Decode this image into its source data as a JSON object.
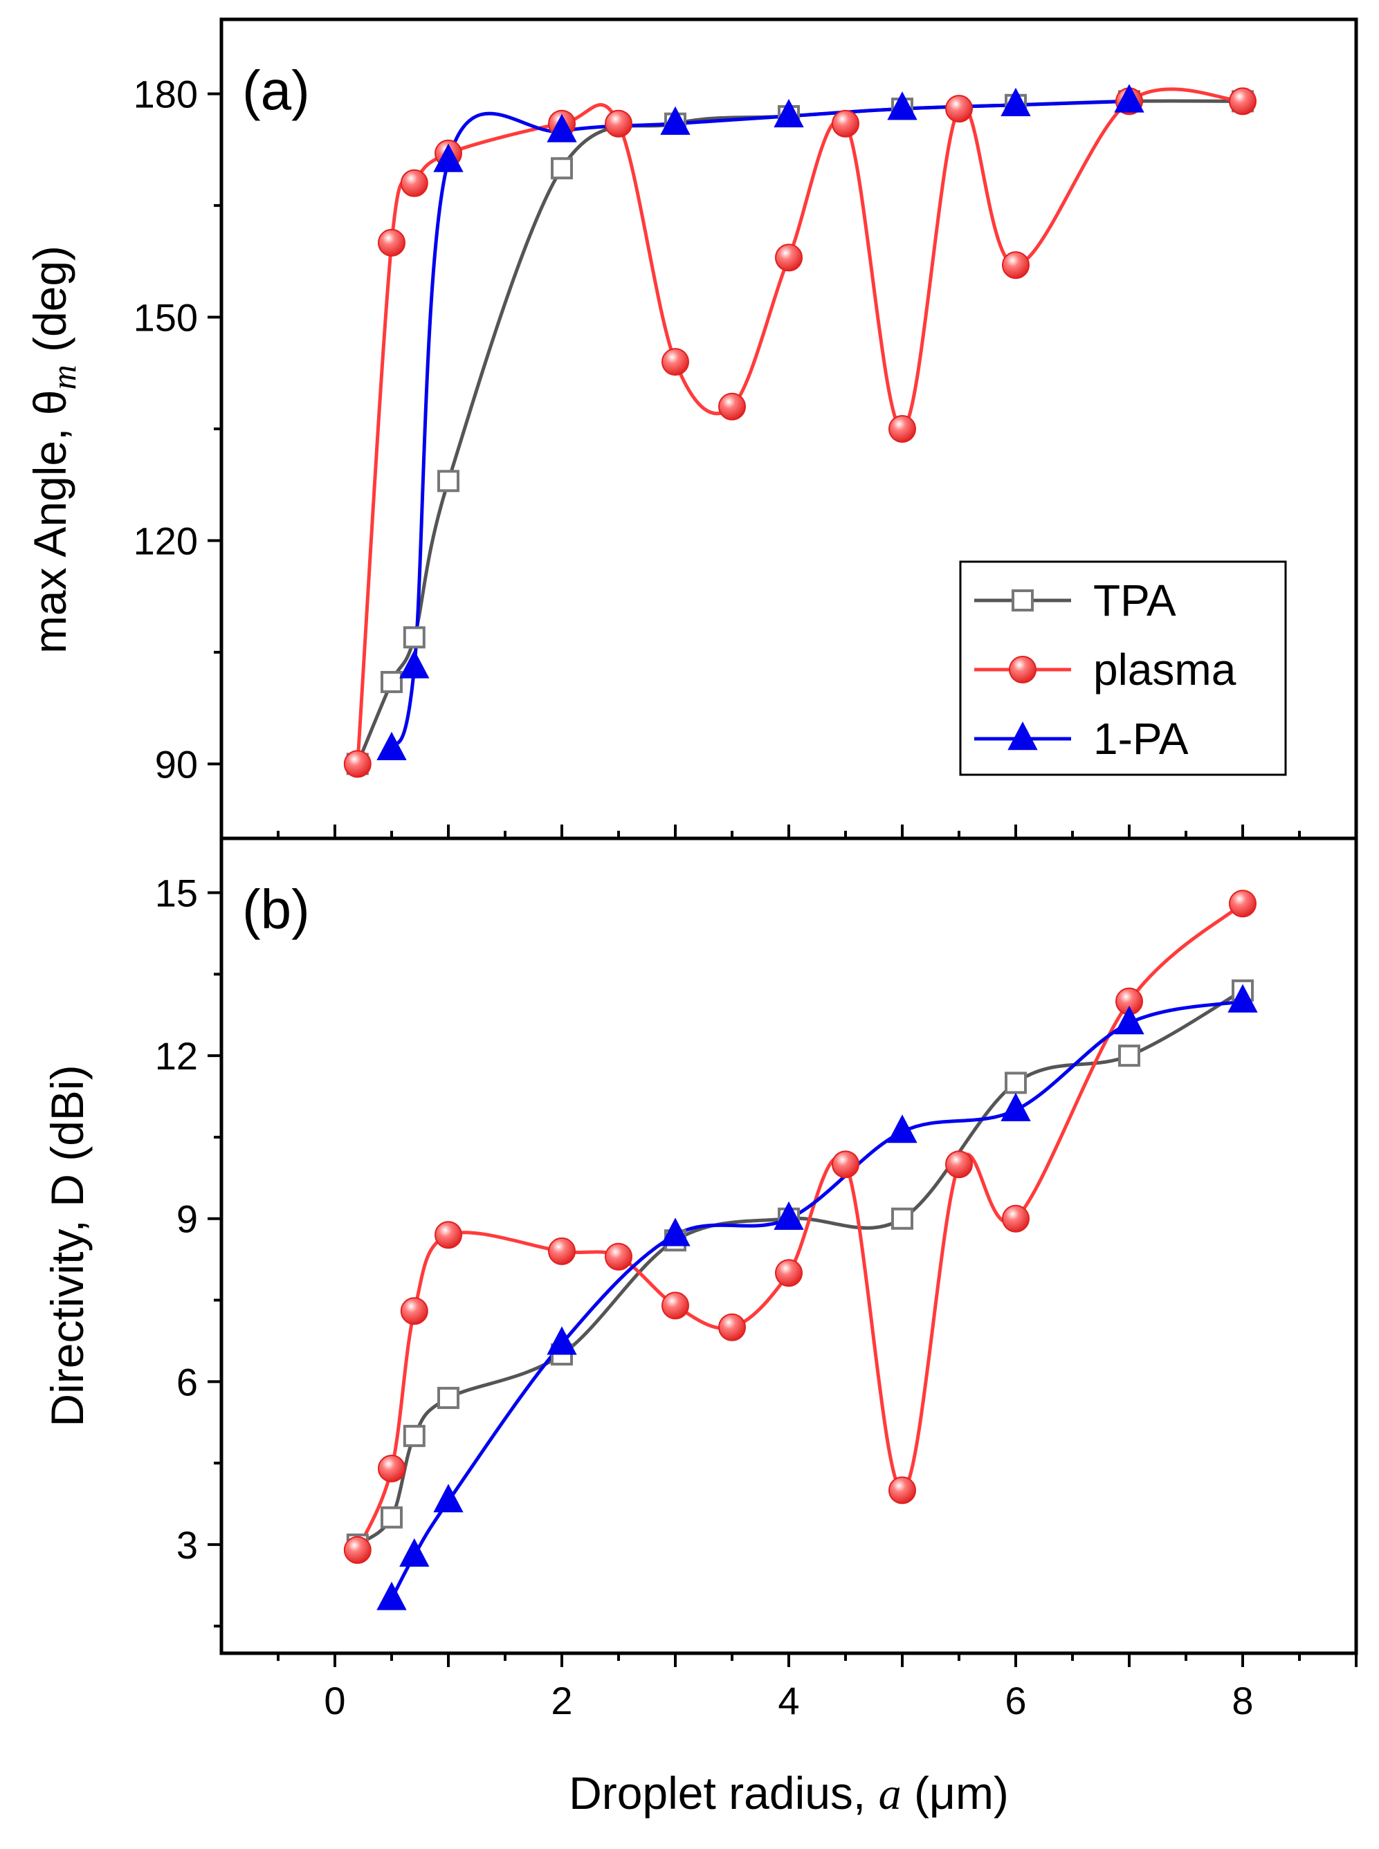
{
  "chart_data": [
    {
      "panel": "(a)",
      "type": "line",
      "ylabel_prefix": "max Angle, θ",
      "ylabel_sub": "m",
      "ylabel_suffix": " (deg)",
      "ylim": [
        80,
        190
      ],
      "yticks": [
        90,
        120,
        150,
        180
      ],
      "xlim": [
        -1,
        9
      ],
      "series": [
        {
          "name": "TPA",
          "color": "#555555",
          "marker": "square",
          "x": [
            0.2,
            0.5,
            0.7,
            1,
            2,
            3,
            4,
            5,
            6,
            7,
            8
          ],
          "y": [
            90,
            101,
            107,
            128,
            170,
            176,
            177,
            178,
            178.5,
            179,
            179
          ]
        },
        {
          "name": "plasma",
          "color": "#ff3b3b",
          "marker": "circle",
          "x": [
            0.2,
            0.5,
            0.7,
            1,
            2,
            2.5,
            3,
            3.5,
            4,
            4.5,
            5,
            5.5,
            6,
            7,
            8
          ],
          "y": [
            90,
            160,
            168,
            172,
            176,
            176,
            144,
            138,
            158,
            176,
            135,
            178,
            157,
            179,
            179
          ]
        },
        {
          "name": "1-PA",
          "color": "#0000ee",
          "marker": "triangle",
          "x": [
            0.5,
            0.7,
            1,
            2,
            3,
            4,
            5,
            6,
            7
          ],
          "y": [
            92,
            103,
            171,
            175,
            176,
            177,
            178,
            178.5,
            179
          ]
        }
      ],
      "legend": [
        "TPA",
        "plasma",
        "1-PA"
      ],
      "legend_position": "lower-right"
    },
    {
      "panel": "(b)",
      "type": "line",
      "ylabel": "Directivity, D (dBi)",
      "ylim": [
        1,
        16
      ],
      "yticks": [
        3,
        6,
        9,
        12,
        15
      ],
      "xlim": [
        -1,
        9
      ],
      "xticks": [
        0,
        2,
        4,
        6,
        8
      ],
      "xlabel_prefix": "Droplet radius, ",
      "xlabel_var": "a",
      "xlabel_suffix": " (μm)",
      "series": [
        {
          "name": "TPA",
          "color": "#555555",
          "marker": "square",
          "x": [
            0.2,
            0.5,
            0.7,
            1,
            2,
            3,
            4,
            5,
            6,
            7,
            8
          ],
          "y": [
            3.0,
            3.5,
            5.0,
            5.7,
            6.5,
            8.6,
            9.0,
            9.0,
            11.5,
            12.0,
            13.2
          ]
        },
        {
          "name": "plasma",
          "color": "#ff3b3b",
          "marker": "circle",
          "x": [
            0.2,
            0.5,
            0.7,
            1,
            2,
            2.5,
            3,
            3.5,
            4,
            4.5,
            5,
            5.5,
            6,
            7,
            8
          ],
          "y": [
            2.9,
            4.4,
            7.3,
            8.7,
            8.4,
            8.3,
            7.4,
            7.0,
            8.0,
            10.0,
            4.0,
            10.0,
            9.0,
            13.0,
            14.8
          ]
        },
        {
          "name": "1-PA",
          "color": "#0000ee",
          "marker": "triangle",
          "x": [
            0.5,
            0.7,
            1,
            2,
            3,
            4,
            5,
            6,
            7,
            8
          ],
          "y": [
            2.0,
            2.8,
            3.8,
            6.7,
            8.7,
            9.0,
            10.6,
            11.0,
            12.6,
            13.0
          ]
        }
      ]
    }
  ]
}
